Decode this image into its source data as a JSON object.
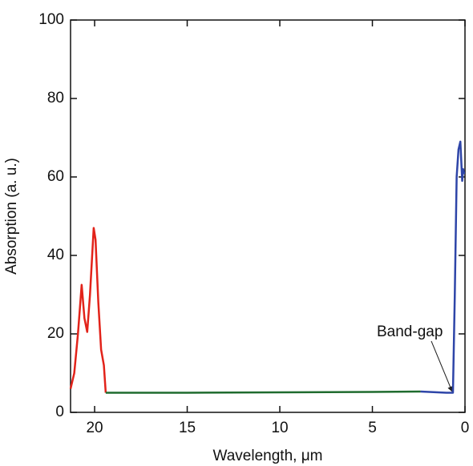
{
  "chart_data": {
    "type": "line",
    "xlabel": "Wavelength, μm",
    "ylabel": "Absorption (a. u.)",
    "xlim": [
      21.3,
      0
    ],
    "xticks": [
      20,
      15,
      10,
      5,
      0
    ],
    "ylim": [
      0,
      100
    ],
    "yticks": [
      0,
      20,
      40,
      60,
      80,
      100
    ],
    "annotation": "Band-gap",
    "series": [
      {
        "color": "#e2231a",
        "x": [
          21.3,
          21.1,
          20.9,
          20.7,
          20.55,
          20.4,
          20.25,
          20.05,
          19.95,
          19.8,
          19.65,
          19.5,
          19.4
        ],
        "values": [
          6,
          10,
          20,
          32.5,
          24,
          20.5,
          30,
          47,
          44,
          28,
          16,
          12,
          5
        ]
      },
      {
        "color": "#1f6b2e",
        "x": [
          19.4,
          15,
          10,
          5,
          2.4
        ],
        "values": [
          5,
          5,
          5.1,
          5.2,
          5.3
        ]
      },
      {
        "color": "#2e45a8",
        "x": [
          2.4,
          1,
          0.65,
          0.55,
          0.45,
          0.35,
          0.25,
          0.2,
          0.15,
          0.1,
          0.05,
          0
        ],
        "values": [
          5.3,
          5,
          5,
          30,
          60,
          67,
          69,
          64,
          59,
          62,
          61,
          61
        ]
      }
    ]
  }
}
